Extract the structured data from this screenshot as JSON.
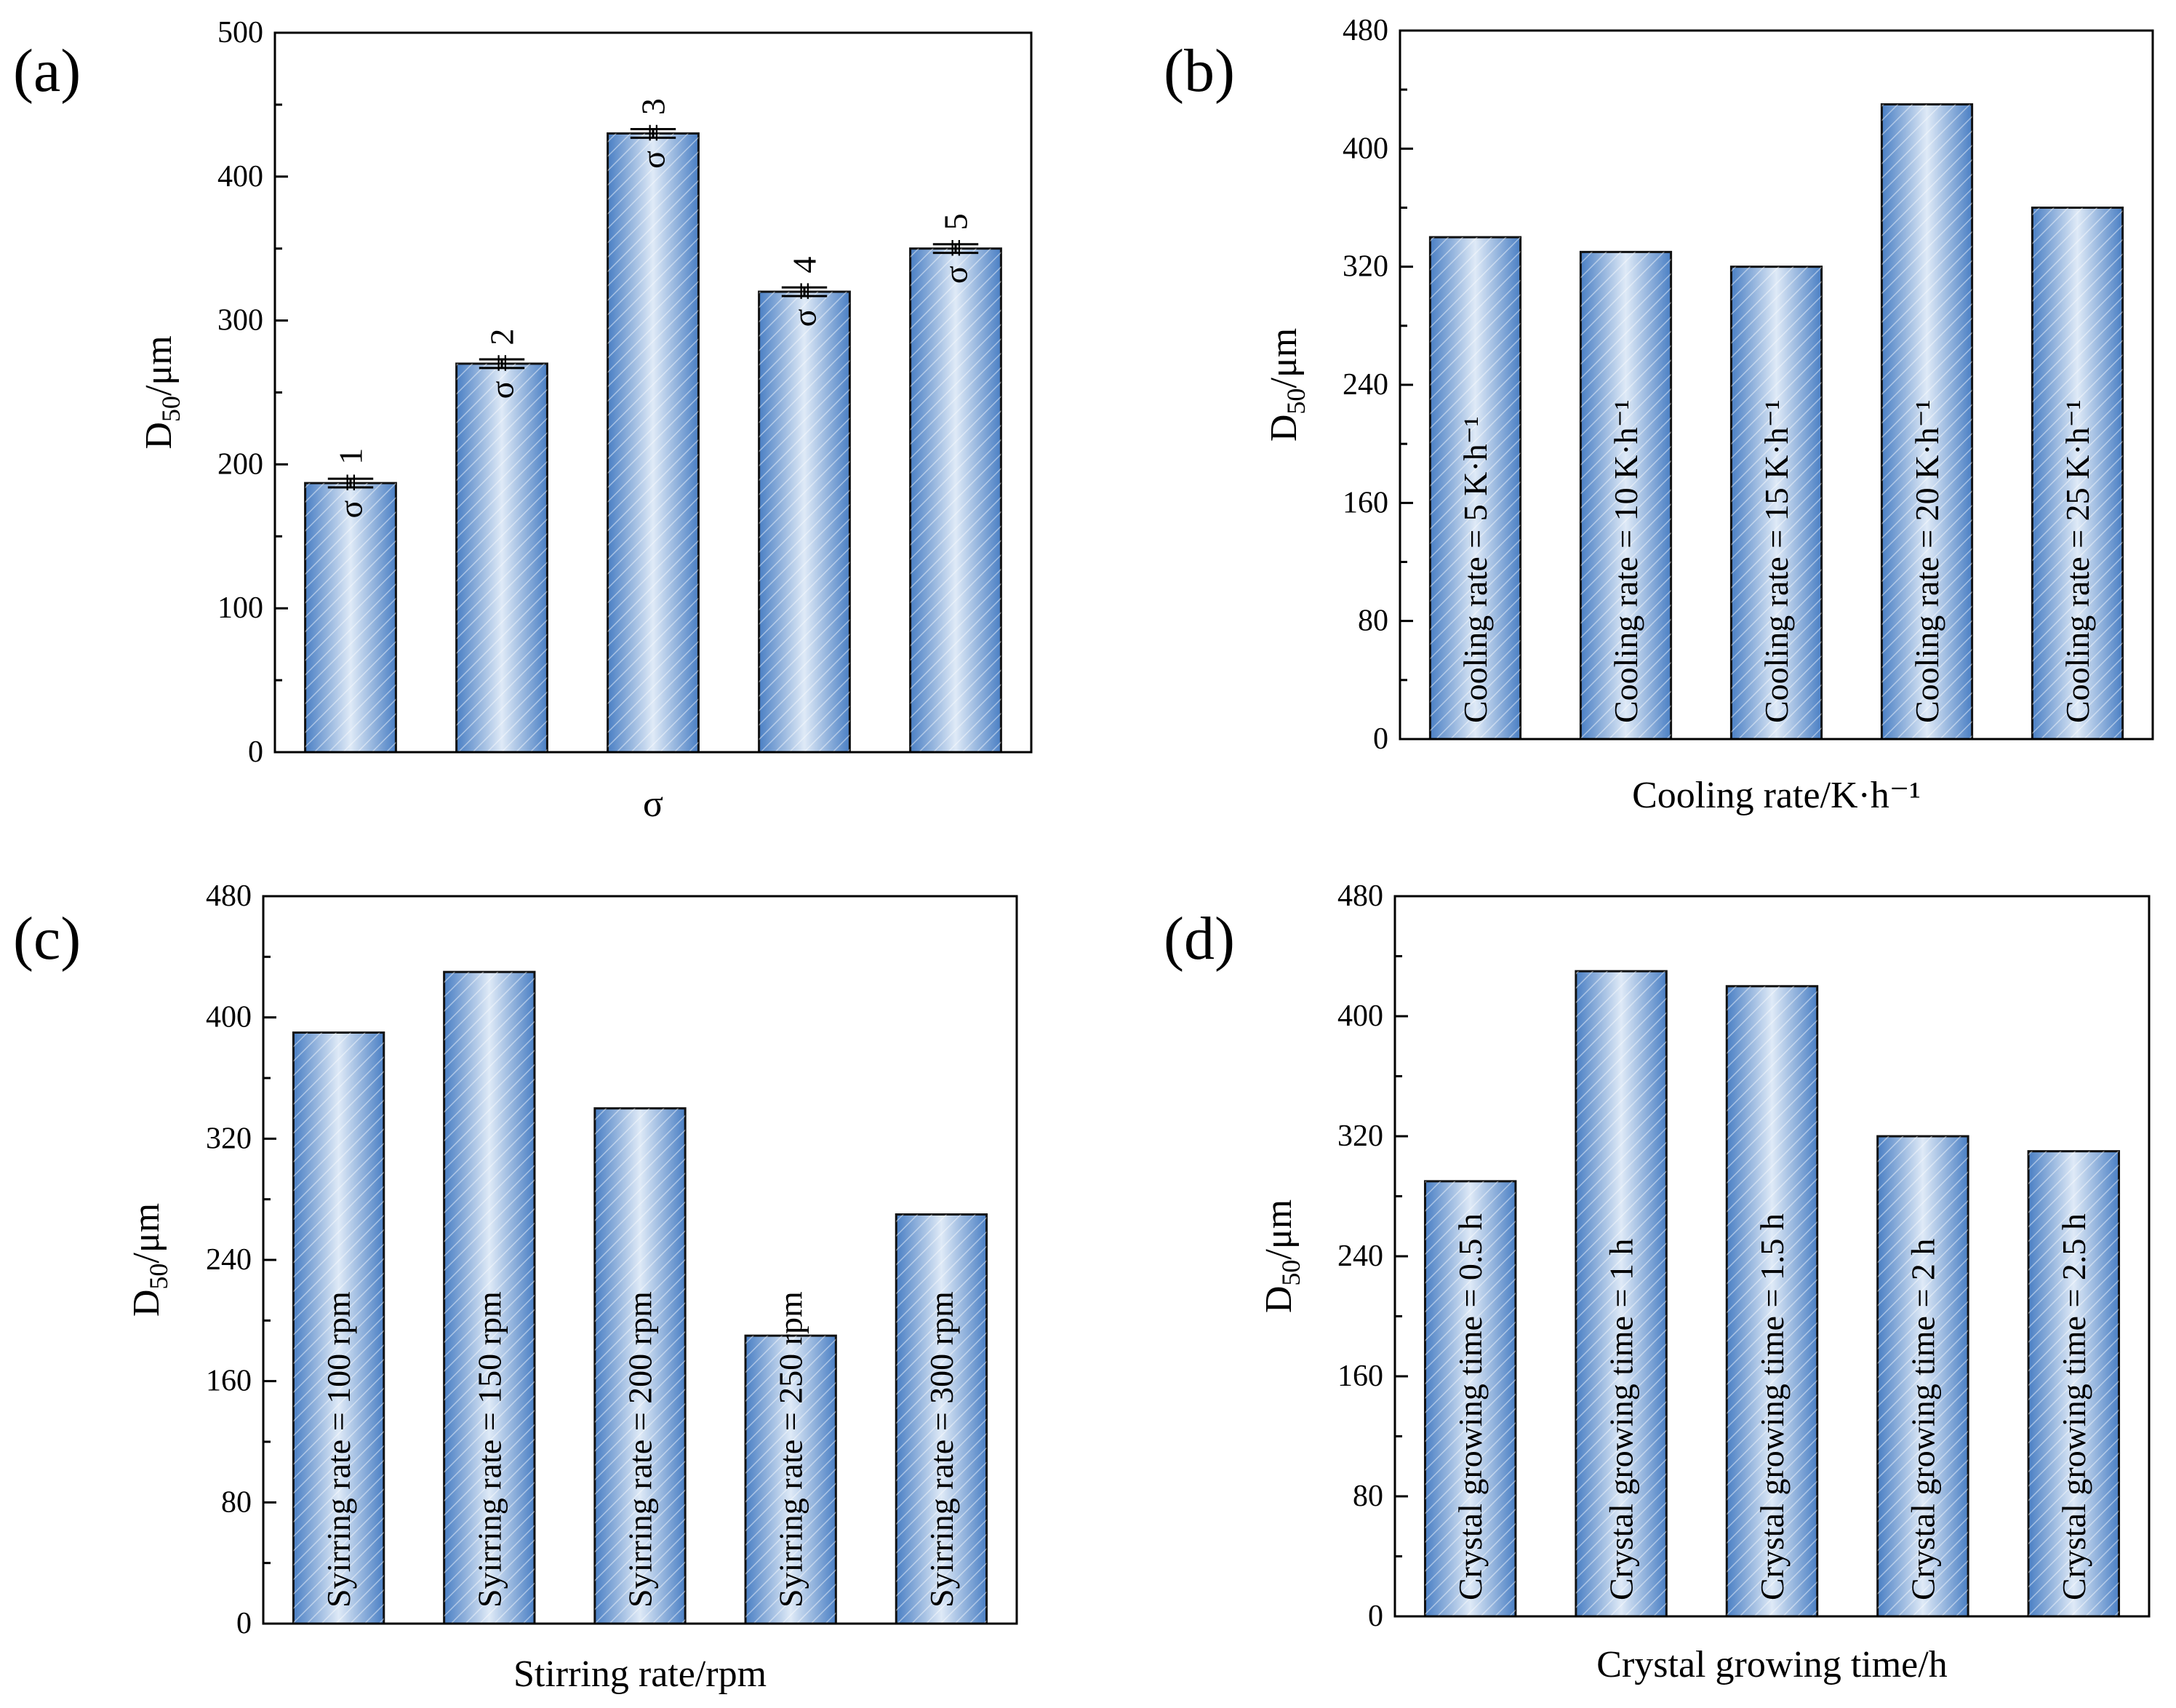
{
  "figure": {
    "colors": {
      "bar_light": "#dfeaf7",
      "bar_mid": "#9dbfe7",
      "bar_dark": "#4a7fc4",
      "hatch": "#ffffff",
      "axis": "#000000"
    }
  },
  "chart_data": [
    {
      "id": "a",
      "panel_label": "(a)",
      "type": "bar",
      "xlabel": "σ",
      "ylabel_main": "D",
      "ylabel_sub": "50",
      "ylabel_unit": "/μm",
      "ylim": [
        0,
        500
      ],
      "yticks": [
        0,
        100,
        200,
        300,
        400,
        500
      ],
      "categories": [
        "σ = 1",
        "σ = 2",
        "σ = 3",
        "σ = 4",
        "σ = 5"
      ],
      "values": [
        187,
        270,
        430,
        320,
        350
      ],
      "error": [
        3,
        3,
        3,
        3,
        3
      ],
      "label_position": "top"
    },
    {
      "id": "b",
      "panel_label": "(b)",
      "type": "bar",
      "xlabel": "Cooling rate/K·h⁻¹",
      "ylabel_main": "D",
      "ylabel_sub": "50",
      "ylabel_unit": "/μm",
      "ylim": [
        0,
        480
      ],
      "yticks": [
        0,
        80,
        160,
        240,
        320,
        400,
        480
      ],
      "categories": [
        "Cooling rate = 5 K·h⁻¹",
        "Cooling rate = 10 K·h⁻¹",
        "Cooling rate = 15 K·h⁻¹",
        "Cooling rate = 20 K·h⁻¹",
        "Cooling rate = 25 K·h⁻¹"
      ],
      "values": [
        340,
        330,
        320,
        430,
        360
      ],
      "label_position": "inside"
    },
    {
      "id": "c",
      "panel_label": "(c)",
      "type": "bar",
      "xlabel": "Stirring rate/rpm",
      "ylabel_main": "D",
      "ylabel_sub": "50",
      "ylabel_unit": "/μm",
      "ylim": [
        0,
        480
      ],
      "yticks": [
        0,
        80,
        160,
        240,
        320,
        400,
        480
      ],
      "categories": [
        "Syirring rate = 100 rpm",
        "Syirring rate = 150 rpm",
        "Syirring rate = 200 rpm",
        "Syirring rate = 250 rpm",
        "Syirring rate = 300 rpm"
      ],
      "values": [
        390,
        430,
        340,
        190,
        270
      ],
      "label_position": "inside"
    },
    {
      "id": "d",
      "panel_label": "(d)",
      "type": "bar",
      "xlabel": "Crystal growing time/h",
      "ylabel_main": "D",
      "ylabel_sub": "50",
      "ylabel_unit": "/μm",
      "ylim": [
        0,
        480
      ],
      "yticks": [
        0,
        80,
        160,
        240,
        320,
        400,
        480
      ],
      "categories": [
        "Crystal growing time = 0.5 h",
        "Crystal growing time = 1 h",
        "Crystal growing time = 1.5 h",
        "Crystal growing time = 2 h",
        "Crystal growing time = 2.5 h"
      ],
      "values": [
        290,
        430,
        420,
        320,
        310
      ],
      "label_position": "inside"
    }
  ]
}
